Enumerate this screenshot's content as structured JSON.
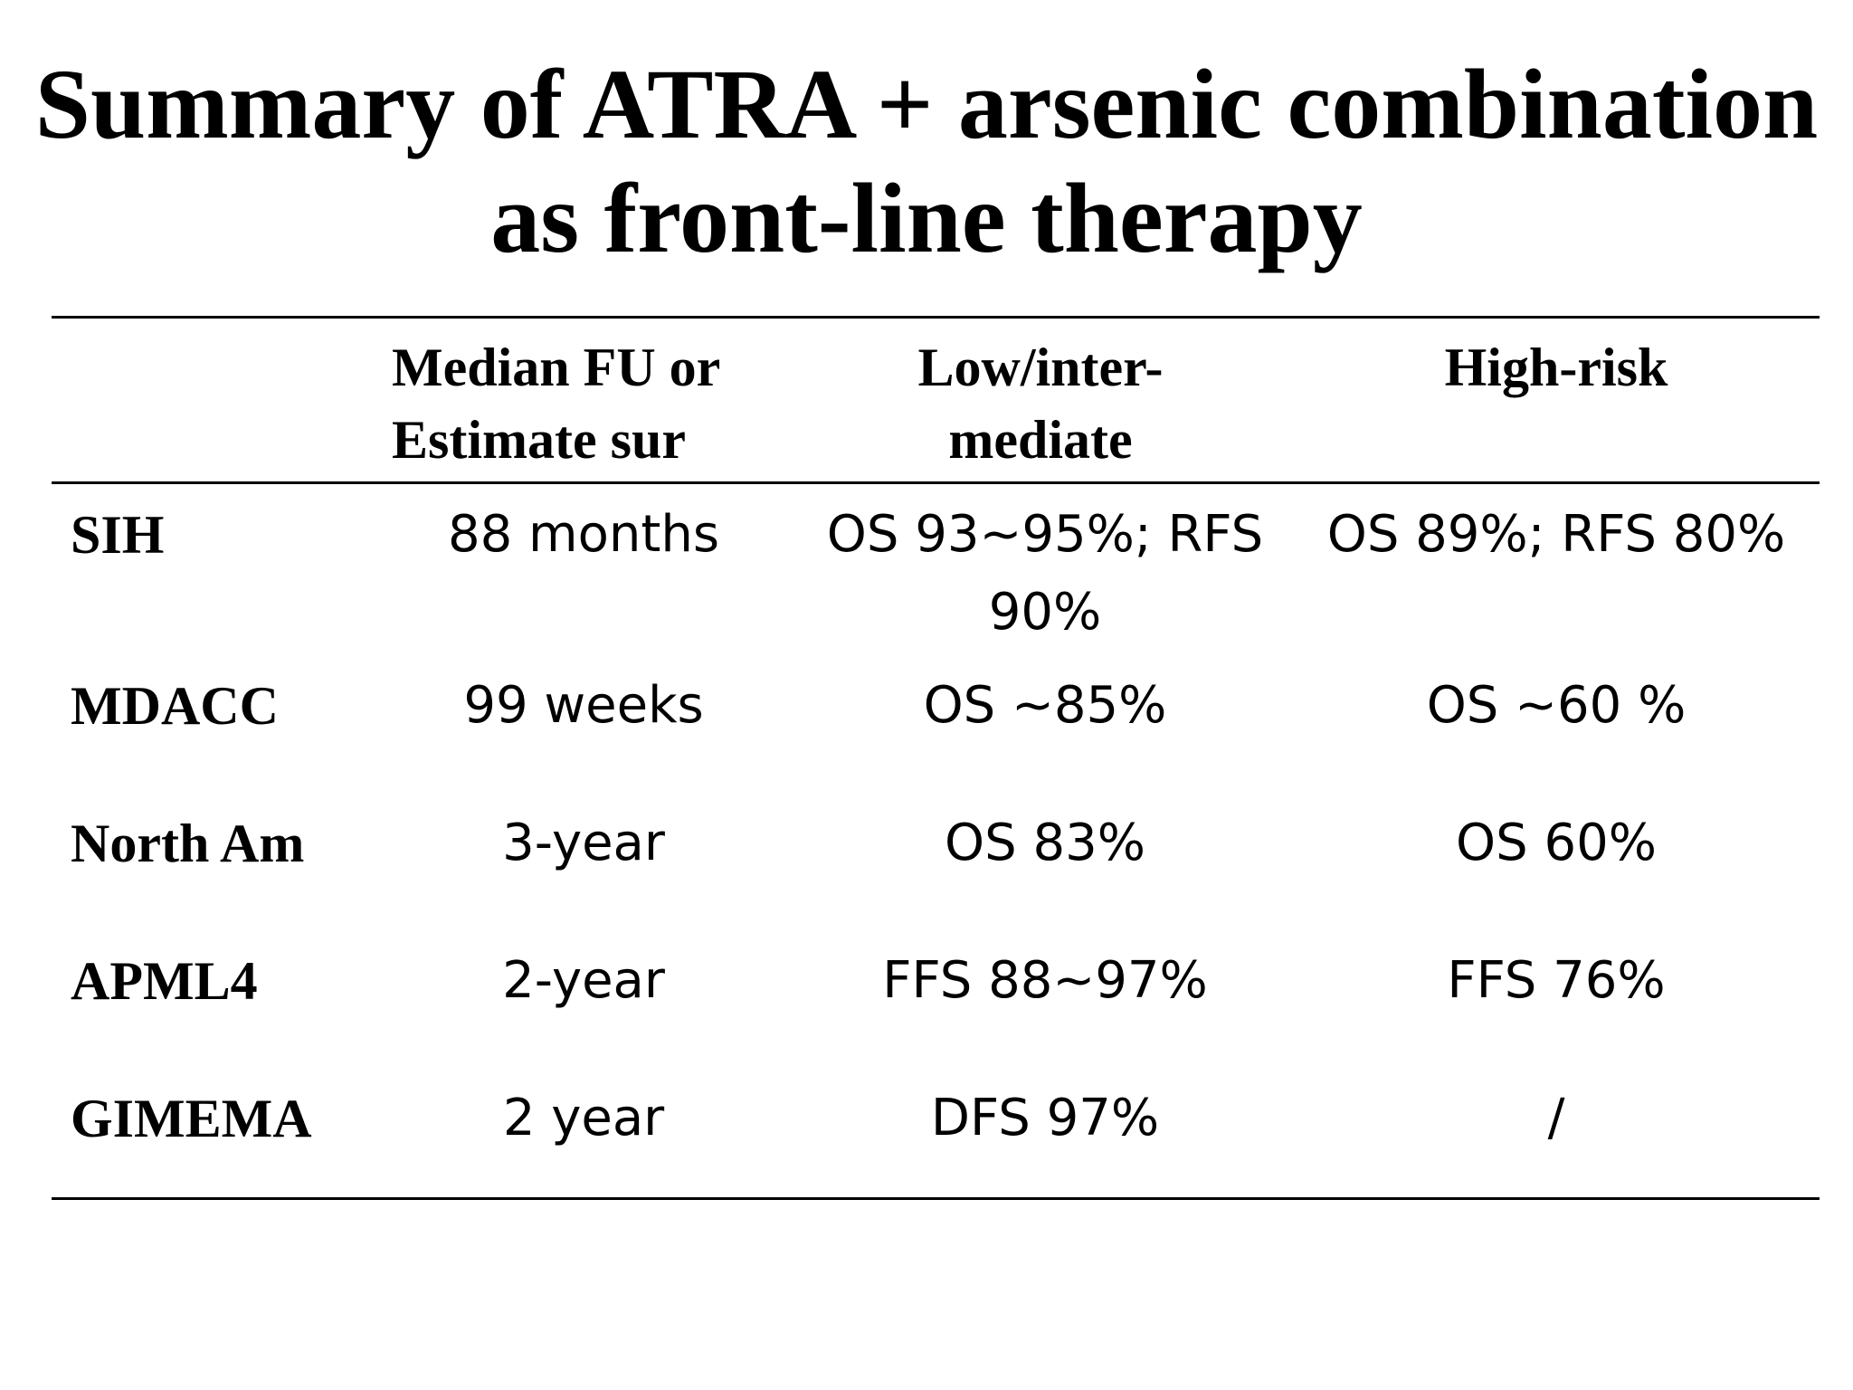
{
  "title": {
    "line1": "Summary of ATRA + arsenic combination",
    "line2": "as front-line therapy"
  },
  "table": {
    "headers": {
      "col1_line1": "Median FU or",
      "col1_line2": "Estimate sur",
      "col2_line1": "Low/inter-",
      "col2_line2": "mediate",
      "col3": "High-risk"
    },
    "rows": [
      {
        "name": "SIH",
        "fu": "88 months",
        "low_line1": "OS 93~95%; RFS",
        "low_line2": "90%",
        "high": "OS 89%; RFS 80%"
      },
      {
        "name": "MDACC",
        "fu": "99 weeks",
        "low": "OS ~85%",
        "high": "OS ~60 %"
      },
      {
        "name": "North Am",
        "fu": "3-year",
        "low": "OS 83%",
        "high": "OS 60%"
      },
      {
        "name": "APML4",
        "fu": "2-year",
        "low": "FFS 88~97%",
        "high": "FFS 76%"
      },
      {
        "name": "GIMEMA",
        "fu": "2 year",
        "low": "DFS 97%",
        "high": "/"
      }
    ]
  }
}
